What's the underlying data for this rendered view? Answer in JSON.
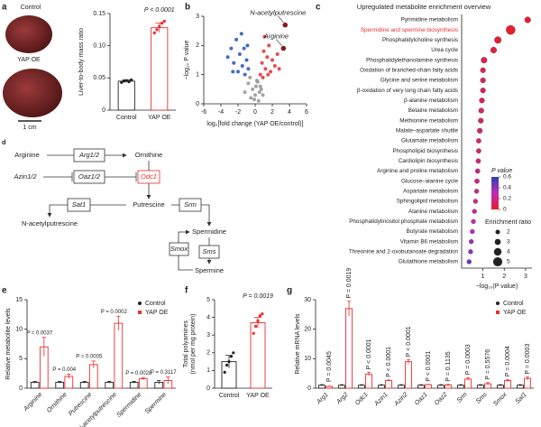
{
  "photos": {
    "label": "a",
    "captions": [
      "Control",
      "YAP OE"
    ],
    "scale_bar": "1 cm"
  },
  "diagram": {
    "label": "d",
    "nodes": [
      "Arginine",
      "Arg1/2",
      "Ornithine",
      "Azin1/2",
      "Oaz1/2",
      "Odc1",
      "Sat1",
      "Putrescine",
      "Srm",
      "N-acetylputrescine",
      "Spermidine",
      "Smox",
      "Sms",
      "Spermine"
    ]
  },
  "chart_data": [
    {
      "type": "bar",
      "label": "a",
      "ylabel": [
        "Liver-to-body mass ratio"
      ],
      "categories": [
        "Control",
        "YAP OE"
      ],
      "colors": [
        "#222222",
        "#e8302f"
      ],
      "values": [
        0.045,
        0.128
      ],
      "errors": [
        0.002,
        0.007
      ],
      "points": [
        [
          0.043,
          0.045,
          0.046,
          0.044,
          0.047
        ],
        [
          0.12,
          0.125,
          0.13,
          0.135,
          0.138
        ]
      ],
      "annotation": "P < 0.0001",
      "ylim": [
        0,
        0.15
      ],
      "yticks": [
        0,
        0.05,
        {
          "value": 0.1,
          "label": "0.10"
        },
        0.15
      ]
    },
    {
      "type": "scatter",
      "label": "b",
      "xlabel": "log₂[fold change (YAP OE/control)]",
      "ylabel": [
        "−log₁₀ P value"
      ],
      "xlim": [
        -6,
        6
      ],
      "xticks": [
        -6,
        -4,
        -2,
        0,
        2,
        4,
        6
      ],
      "ylim": [
        0,
        3
      ],
      "yticks": [
        0,
        1,
        2,
        3
      ],
      "series": [
        {
          "color": "#2b5fb5",
          "x": [
            -3.2,
            -2.8,
            -2.5,
            -2.2,
            -2,
            -1.8,
            -1.6,
            -1.5,
            -1.3,
            -1.2,
            -1,
            -0.9,
            -0.8,
            -2.6
          ],
          "y": [
            1.6,
            1.9,
            1.4,
            2.2,
            1.1,
            1.7,
            2.4,
            1.3,
            1.9,
            1.0,
            1.5,
            2.0,
            1.2,
            1.1
          ]
        },
        {
          "color": "#e03a3a",
          "x": [
            0.6,
            0.8,
            1.0,
            1.2,
            1.4,
            1.6,
            1.8,
            2.0,
            2.3,
            2.6,
            1.1,
            0.9,
            1.5,
            2.8
          ],
          "y": [
            1.0,
            1.4,
            1.8,
            1.2,
            1.6,
            2.0,
            1.1,
            1.5,
            1.3,
            1.7,
            2.3,
            0.9,
            1.0,
            1.2
          ]
        },
        {
          "color": "#9a9a9a",
          "x": [
            -1.2,
            -0.8,
            -0.5,
            -0.3,
            0,
            0.2,
            0.4,
            0.6,
            0.9,
            -0.6,
            0.1,
            0.5,
            -0.1,
            0.3,
            0.7
          ],
          "y": [
            0.4,
            0.7,
            0.2,
            0.5,
            0.3,
            0.8,
            0.1,
            0.6,
            0.3,
            0.9,
            0.6,
            0.4,
            0.15,
            0.75,
            0.5
          ]
        }
      ],
      "annotations": [
        {
          "text": "N-acetylputrescine",
          "x": 3.5,
          "y": 2.7
        },
        {
          "text": "Arginine",
          "x": 3.3,
          "y": 1.9
        }
      ],
      "annotation_color": "#8b1a1a"
    },
    {
      "type": "dot",
      "label": "c",
      "title": "Upregulated metabolite enrichment overview",
      "xlabel": "−log₁₀(P value)",
      "categories": [
        "Pyrimidine metabolism",
        "Spermidine and spermine biosynthesis",
        "Phosphatidylcholine synthesis",
        "Urea cycle",
        "Phosphatidylethanolamine synthesis",
        "Oxidation of branched-chain fatty acids",
        "Glycine and serine metabolism",
        "β-oxidation of very long chain fatty acids",
        "β-alanine metabolism",
        "Betaine metabolism",
        "Methionine metabolism",
        "Malate–aspartate shuttle",
        "Glutamate metabolism",
        "Phospholipid biosynthesis",
        "Cardiolipin biosynthesis",
        "Arginine and proline metabolism",
        "Glucose–alanine cycle",
        "Aspartate metabolism",
        "Sphingolipid metabolism",
        "Alanine metabolism",
        "Phosphatidylinositol phosphate metabolism",
        "Butyrate metabolism",
        "Vitamin B6 metabolism",
        "Threonine and 2-oxobutanoate degradation",
        "Glutathione metabolism"
      ],
      "values": [
        3.1,
        2.3,
        1.7,
        1.5,
        1.05,
        1.0,
        1.0,
        1.0,
        0.95,
        0.92,
        0.9,
        0.85,
        0.8,
        0.8,
        0.78,
        0.75,
        0.72,
        0.7,
        0.65,
        0.6,
        0.55,
        0.5,
        0.45,
        0.42,
        0.35
      ],
      "sizes": [
        3,
        5,
        3.5,
        3,
        3,
        2.5,
        2.5,
        2.5,
        2.5,
        2.5,
        2.5,
        2.5,
        2.2,
        2.2,
        2.2,
        2.2,
        2.2,
        2,
        2,
        2,
        2,
        2,
        2,
        2,
        2
      ],
      "highlight": 1,
      "highlight_color": "#e8302f",
      "xlim": [
        0,
        3.3
      ],
      "xticks": [
        1,
        2,
        3
      ],
      "color_legend_title": "P value",
      "p_range": [
        0,
        0.6
      ],
      "p_ticks": [
        0.6,
        0.4,
        0.2,
        0
      ],
      "size_legend_title": "Enrichment ratio",
      "size_ticks": [
        2,
        3,
        4,
        5
      ]
    },
    {
      "type": "bar",
      "label": "e",
      "ylabel": [
        "Relative metabolite levels"
      ],
      "categories": [
        "Arginine",
        "Ornithine",
        "Putrescine",
        "N-acetylputrescine",
        "Spermidine",
        "Spermine"
      ],
      "series": [
        {
          "name": "Control",
          "color": "#222222",
          "values": [
            1,
            1,
            1,
            1,
            1,
            1
          ],
          "errors": [
            0.15,
            0.15,
            0.15,
            0.15,
            0.15,
            0.3
          ]
        },
        {
          "name": "YAP OE",
          "color": "#e8302f",
          "values": [
            7,
            2,
            4,
            11,
            1.6,
            1.3
          ],
          "errors": [
            1.6,
            0.4,
            0.6,
            1.2,
            0.2,
            0.6
          ]
        }
      ],
      "pvalues": [
        "P = 0.0037",
        "P = 0.004",
        "P = 0.0005",
        "P = 0.0002",
        "P = 0.0028",
        "P = 0.3117"
      ],
      "ylim": [
        0,
        15
      ],
      "yticks": [
        0,
        5,
        10,
        15
      ]
    },
    {
      "type": "bar",
      "label": "f",
      "ylabel": [
        "Total polyamines",
        "(nmol per mg protein)"
      ],
      "categories": [
        "Control",
        "YAP OE"
      ],
      "colors": [
        "#222222",
        "#e8302f"
      ],
      "values": [
        1.5,
        3.7
      ],
      "errors": [
        0.35,
        0.3
      ],
      "points": [
        [
          0.9,
          1.3,
          1.5,
          1.8,
          2.0
        ],
        [
          3.1,
          3.5,
          3.8,
          4.1,
          4.2
        ]
      ],
      "annotation": "P = 0.0019",
      "ylim": [
        0,
        5
      ],
      "yticks": [
        0,
        1,
        2,
        3,
        4,
        5
      ]
    },
    {
      "type": "bar",
      "label": "g",
      "ylabel": [
        "Relative mRNA levels"
      ],
      "categories": [
        "Arg1",
        "Arg2",
        "Odc1",
        "Azin1",
        "Azin2",
        "Oaz1",
        "Oaz2",
        "Srm",
        "Sms",
        "Smox",
        "Sat1"
      ],
      "series": [
        {
          "name": "Control",
          "color": "#222222",
          "values": [
            1,
            1,
            1,
            1,
            1,
            1,
            1,
            1,
            1,
            1,
            1
          ],
          "errors": [
            0.2,
            0.2,
            0.2,
            0.2,
            0.2,
            0.2,
            0.2,
            0.2,
            0.2,
            0.2,
            0.2
          ]
        },
        {
          "name": "YAP OE",
          "color": "#e8302f",
          "values": [
            0.6,
            27,
            4.8,
            2.6,
            9,
            1.2,
            1.1,
            3.1,
            1.5,
            2.6,
            3.3
          ],
          "errors": [
            0.1,
            2.5,
            0.6,
            0.2,
            0.7,
            0.1,
            0.2,
            0.5,
            0.4,
            0.4,
            0.5
          ]
        }
      ],
      "pvalues": [
        "P = 0.0045",
        "P = 0.0019",
        "P < 0.0001",
        "P < 0.0001",
        "P < 0.0001",
        "P < 0.0001",
        "P = 0.1135",
        "P = 0.0003",
        "P = 0.5576",
        "P = 0.0004",
        "P = 0.0003"
      ],
      "ylim": [
        0,
        30
      ],
      "yticks": [
        0,
        10,
        20,
        30
      ]
    }
  ]
}
